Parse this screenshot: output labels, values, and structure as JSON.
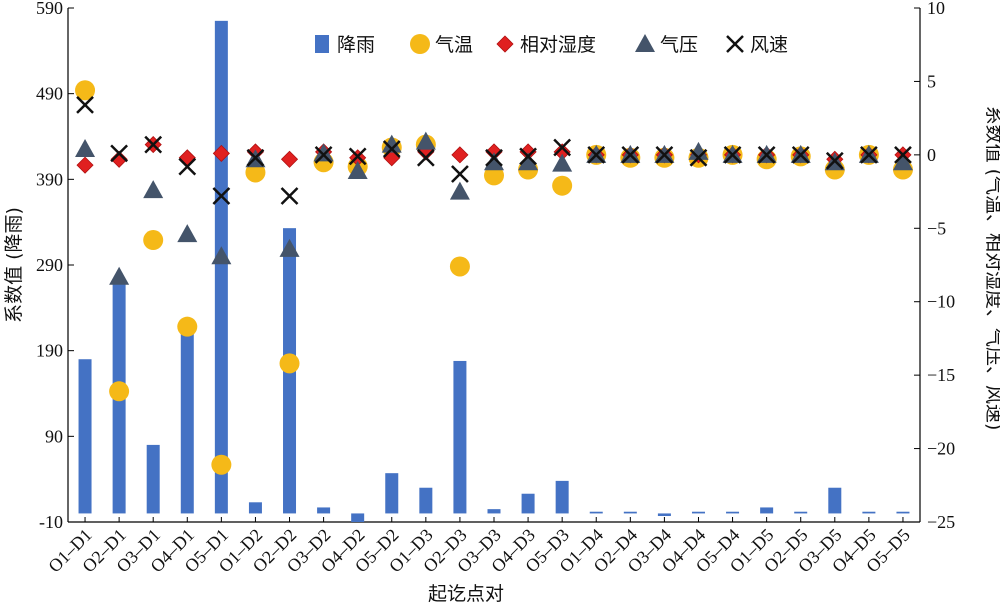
{
  "chart_data": {
    "type": "bar",
    "xlabel": "起讫点对",
    "ylabel_left": "系数值 (降雨)",
    "ylabel_right": "系数值 (气温、相对湿度、气压、风速)",
    "ylim_left": [
      -10,
      590
    ],
    "yticks_left": [
      -10,
      90,
      190,
      290,
      390,
      490,
      590
    ],
    "ylim_right": [
      -25,
      10
    ],
    "yticks_right": [
      -25,
      -20,
      -15,
      -10,
      -5,
      0,
      5,
      10
    ],
    "grid": false,
    "legend_position": "top",
    "categories": [
      "O1–D1",
      "O2–D1",
      "O3–D1",
      "O4–D1",
      "O5–D1",
      "O1–D2",
      "O2–D2",
      "O3–D2",
      "O4–D2",
      "O5–D2",
      "O1–D3",
      "O2–D3",
      "O3–D3",
      "O4–D3",
      "O5–D3",
      "O1–D4",
      "O2–D4",
      "O3–D4",
      "O4–D4",
      "O5–D4",
      "O1–D5",
      "O2–D5",
      "O3–D5",
      "O4–D5",
      "O5–D5"
    ],
    "series": [
      {
        "name": "降雨",
        "axis": "left",
        "kind": "bar",
        "color": "#4472c4",
        "values": [
          180,
          270,
          80,
          210,
          575,
          13,
          333,
          7,
          -10,
          47,
          30,
          178,
          5,
          23,
          38,
          2,
          2,
          -3,
          2,
          2,
          7,
          2,
          30,
          2,
          2
        ]
      },
      {
        "name": "气温",
        "axis": "right",
        "kind": "circle",
        "color": "#f5b918",
        "values": [
          4.4,
          -16.1,
          -5.8,
          -11.7,
          -21.1,
          -1.2,
          -14.2,
          -0.5,
          -0.8,
          0.5,
          0.7,
          -7.6,
          -1.4,
          -1.0,
          -2.1,
          0.0,
          -0.2,
          -0.2,
          -0.2,
          0.0,
          -0.3,
          -0.1,
          -1.0,
          0.0,
          -1.0
        ]
      },
      {
        "name": "相对湿度",
        "axis": "right",
        "kind": "diamond",
        "color": "#e02020",
        "values": [
          -0.7,
          -0.3,
          0.7,
          -0.2,
          0.1,
          0.2,
          -0.3,
          0.2,
          -0.2,
          -0.2,
          0.2,
          0.0,
          0.2,
          0.2,
          0.2,
          0.0,
          0.0,
          0.0,
          0.0,
          0.0,
          0.0,
          0.0,
          -0.3,
          0.0,
          0.0
        ]
      },
      {
        "name": "气压",
        "axis": "right",
        "kind": "triangle",
        "color": "#44546a",
        "values": [
          0.4,
          -8.3,
          -2.4,
          -5.4,
          -6.9,
          -0.3,
          -6.4,
          0.1,
          -1.1,
          0.7,
          0.9,
          -2.5,
          -0.5,
          -0.5,
          -0.6,
          0.0,
          0.0,
          0.0,
          0.2,
          0.0,
          0.0,
          0.0,
          -0.5,
          0.0,
          -0.5
        ]
      },
      {
        "name": "风速",
        "axis": "right",
        "kind": "cross",
        "color": "#111111",
        "values": [
          3.4,
          0.1,
          0.7,
          -0.8,
          -2.8,
          -0.2,
          -2.8,
          0.0,
          -0.1,
          0.4,
          -0.2,
          -1.3,
          -0.2,
          -0.1,
          0.5,
          0.0,
          0.0,
          0.0,
          -0.2,
          0.0,
          0.0,
          0.0,
          -0.4,
          0.0,
          0.0
        ]
      }
    ]
  }
}
